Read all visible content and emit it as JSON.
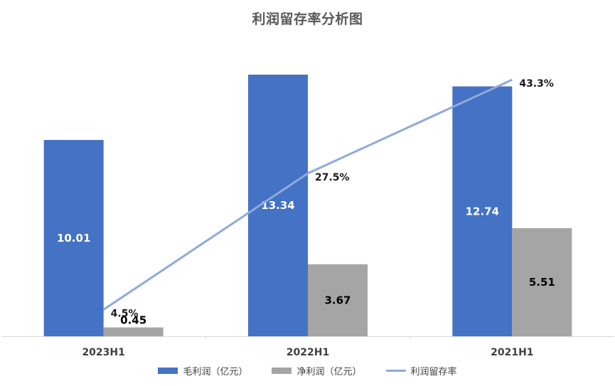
{
  "chart_data": {
    "type": "bar",
    "title": "利润留存率分析图",
    "categories": [
      "2023H1",
      "2022H1",
      "2021H1"
    ],
    "series": [
      {
        "name": "毛利润（亿元）",
        "kind": "bar",
        "values": [
          10.01,
          13.34,
          12.74
        ],
        "color": "#4472C4",
        "label_color": "#ffffff"
      },
      {
        "name": "净利润（亿元）",
        "kind": "bar",
        "values": [
          0.45,
          3.67,
          5.51
        ],
        "color": "#A5A5A5",
        "label_color": "#000000"
      },
      {
        "name": "利润留存率",
        "kind": "line",
        "values": [
          4.5,
          27.5,
          43.3
        ],
        "labels": [
          "4.5%",
          "27.5%",
          "43.3%"
        ],
        "color": "#8FAADC"
      }
    ],
    "ylim": [
      0,
      14.5
    ],
    "y2lim": [
      0,
      48
    ],
    "grid": false,
    "legend_position": "bottom"
  }
}
